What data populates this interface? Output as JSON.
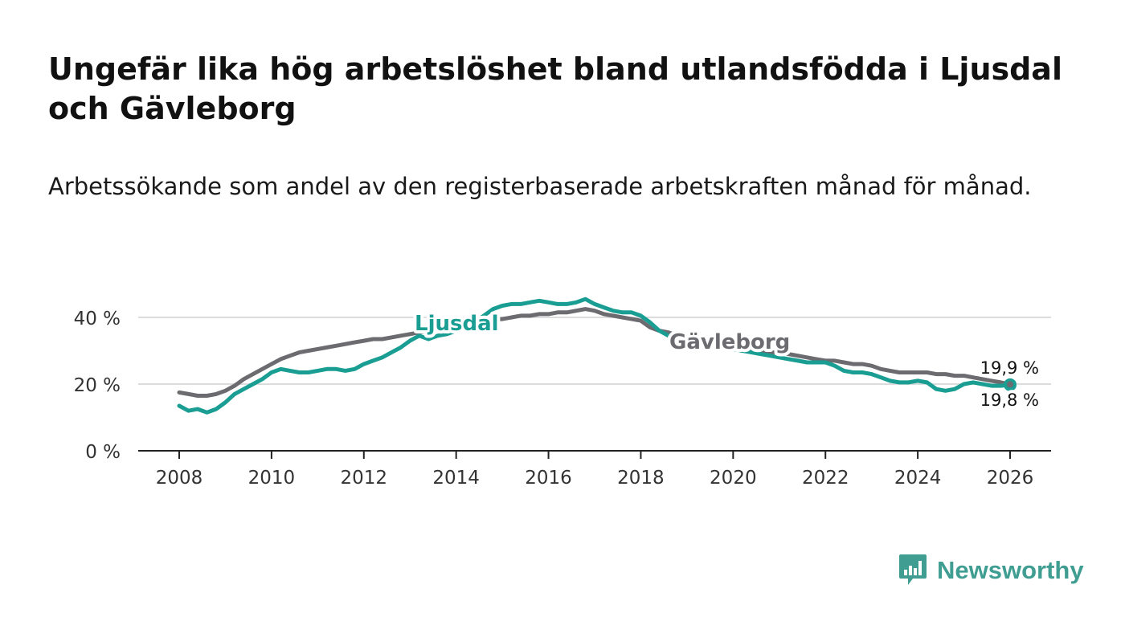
{
  "title": "Ungefär lika hög arbetslöshet bland utlandsfödda i Ljusdal och Gävleborg",
  "subtitle": "Arbetssökande som andel av den registerbaserade arbetskraften månad för månad.",
  "brand": {
    "name": "Newsworthy",
    "logo_icon": "bar-chart-speech-bubble-icon",
    "color": "#3f9e91"
  },
  "chart_data": {
    "type": "line",
    "title": "Ungefär lika hög arbetslöshet bland utlandsfödda i Ljusdal och Gävleborg",
    "xlabel": "",
    "ylabel": "",
    "x_range": [
      2007.0,
      2027.0
    ],
    "ylim": [
      0,
      40
    ],
    "x_ticks": [
      2008,
      2010,
      2012,
      2014,
      2016,
      2018,
      2020,
      2022,
      2024,
      2026
    ],
    "y_ticks": [
      {
        "value": 0,
        "label": "0 %"
      },
      {
        "value": 20,
        "label": "20 %"
      },
      {
        "value": 40,
        "label": "40 %"
      }
    ],
    "grid": true,
    "series": [
      {
        "name": "Ljusdal",
        "color": "#1a9e93",
        "label_text": "Ljusdal",
        "end_label": "19,8 %",
        "points": [
          [
            2008.0,
            13.5
          ],
          [
            2008.2,
            12.0
          ],
          [
            2008.4,
            12.5
          ],
          [
            2008.6,
            11.5
          ],
          [
            2008.8,
            12.5
          ],
          [
            2009.0,
            14.5
          ],
          [
            2009.2,
            17.0
          ],
          [
            2009.4,
            18.5
          ],
          [
            2009.6,
            20.0
          ],
          [
            2009.8,
            21.5
          ],
          [
            2010.0,
            23.5
          ],
          [
            2010.2,
            24.5
          ],
          [
            2010.4,
            24.0
          ],
          [
            2010.6,
            23.5
          ],
          [
            2010.8,
            23.5
          ],
          [
            2011.0,
            24.0
          ],
          [
            2011.2,
            24.5
          ],
          [
            2011.4,
            24.5
          ],
          [
            2011.6,
            24.0
          ],
          [
            2011.8,
            24.5
          ],
          [
            2012.0,
            26.0
          ],
          [
            2012.2,
            27.0
          ],
          [
            2012.4,
            28.0
          ],
          [
            2012.6,
            29.5
          ],
          [
            2012.8,
            31.0
          ],
          [
            2013.0,
            33.0
          ],
          [
            2013.2,
            34.5
          ],
          [
            2013.4,
            33.5
          ],
          [
            2013.6,
            34.5
          ],
          [
            2013.8,
            35.0
          ],
          [
            2014.0,
            36.0
          ],
          [
            2014.2,
            37.5
          ],
          [
            2014.4,
            38.5
          ],
          [
            2014.6,
            40.5
          ],
          [
            2014.8,
            42.5
          ],
          [
            2015.0,
            43.5
          ],
          [
            2015.2,
            44.0
          ],
          [
            2015.4,
            44.0
          ],
          [
            2015.6,
            44.5
          ],
          [
            2015.8,
            45.0
          ],
          [
            2016.0,
            44.5
          ],
          [
            2016.2,
            44.0
          ],
          [
            2016.4,
            44.0
          ],
          [
            2016.6,
            44.5
          ],
          [
            2016.8,
            45.5
          ],
          [
            2017.0,
            44.0
          ],
          [
            2017.2,
            43.0
          ],
          [
            2017.4,
            42.0
          ],
          [
            2017.6,
            41.5
          ],
          [
            2017.8,
            41.5
          ],
          [
            2018.0,
            40.5
          ],
          [
            2018.2,
            38.5
          ],
          [
            2018.4,
            36.0
          ],
          [
            2018.6,
            34.5
          ],
          [
            2018.8,
            33.5
          ],
          [
            2019.0,
            33.0
          ],
          [
            2019.2,
            32.5
          ],
          [
            2019.4,
            32.0
          ],
          [
            2019.6,
            31.5
          ],
          [
            2019.8,
            31.0
          ],
          [
            2020.0,
            30.5
          ],
          [
            2020.2,
            30.0
          ],
          [
            2020.4,
            29.5
          ],
          [
            2020.6,
            29.0
          ],
          [
            2020.8,
            28.5
          ],
          [
            2021.0,
            28.0
          ],
          [
            2021.2,
            27.5
          ],
          [
            2021.4,
            27.0
          ],
          [
            2021.6,
            26.5
          ],
          [
            2021.8,
            26.5
          ],
          [
            2022.0,
            26.5
          ],
          [
            2022.2,
            25.5
          ],
          [
            2022.4,
            24.0
          ],
          [
            2022.6,
            23.5
          ],
          [
            2022.8,
            23.5
          ],
          [
            2023.0,
            23.0
          ],
          [
            2023.2,
            22.0
          ],
          [
            2023.4,
            21.0
          ],
          [
            2023.6,
            20.5
          ],
          [
            2023.8,
            20.5
          ],
          [
            2024.0,
            21.0
          ],
          [
            2024.2,
            20.5
          ],
          [
            2024.4,
            18.5
          ],
          [
            2024.6,
            18.0
          ],
          [
            2024.8,
            18.5
          ],
          [
            2025.0,
            20.0
          ],
          [
            2025.2,
            20.5
          ],
          [
            2025.4,
            20.0
          ],
          [
            2025.6,
            19.5
          ],
          [
            2025.8,
            19.5
          ],
          [
            2026.0,
            19.8
          ]
        ]
      },
      {
        "name": "Gävleborg",
        "color": "#6b6b70",
        "label_text": "Gävleborg",
        "end_label": "19,9 %",
        "points": [
          [
            2008.0,
            17.5
          ],
          [
            2008.2,
            17.0
          ],
          [
            2008.4,
            16.5
          ],
          [
            2008.6,
            16.5
          ],
          [
            2008.8,
            17.0
          ],
          [
            2009.0,
            18.0
          ],
          [
            2009.2,
            19.5
          ],
          [
            2009.4,
            21.5
          ],
          [
            2009.6,
            23.0
          ],
          [
            2009.8,
            24.5
          ],
          [
            2010.0,
            26.0
          ],
          [
            2010.2,
            27.5
          ],
          [
            2010.4,
            28.5
          ],
          [
            2010.6,
            29.5
          ],
          [
            2010.8,
            30.0
          ],
          [
            2011.0,
            30.5
          ],
          [
            2011.2,
            31.0
          ],
          [
            2011.4,
            31.5
          ],
          [
            2011.6,
            32.0
          ],
          [
            2011.8,
            32.5
          ],
          [
            2012.0,
            33.0
          ],
          [
            2012.2,
            33.5
          ],
          [
            2012.4,
            33.5
          ],
          [
            2012.6,
            34.0
          ],
          [
            2012.8,
            34.5
          ],
          [
            2013.0,
            35.0
          ],
          [
            2013.2,
            35.5
          ],
          [
            2013.4,
            36.0
          ],
          [
            2013.6,
            36.5
          ],
          [
            2013.8,
            37.0
          ],
          [
            2014.0,
            37.5
          ],
          [
            2014.2,
            38.0
          ],
          [
            2014.4,
            38.5
          ],
          [
            2014.6,
            39.0
          ],
          [
            2014.8,
            39.5
          ],
          [
            2015.0,
            39.5
          ],
          [
            2015.2,
            40.0
          ],
          [
            2015.4,
            40.5
          ],
          [
            2015.6,
            40.5
          ],
          [
            2015.8,
            41.0
          ],
          [
            2016.0,
            41.0
          ],
          [
            2016.2,
            41.5
          ],
          [
            2016.4,
            41.5
          ],
          [
            2016.6,
            42.0
          ],
          [
            2016.8,
            42.5
          ],
          [
            2017.0,
            42.0
          ],
          [
            2017.2,
            41.0
          ],
          [
            2017.4,
            40.5
          ],
          [
            2017.6,
            40.0
          ],
          [
            2017.8,
            39.5
          ],
          [
            2018.0,
            39.0
          ],
          [
            2018.2,
            37.0
          ],
          [
            2018.4,
            36.0
          ],
          [
            2018.6,
            35.5
          ],
          [
            2018.8,
            34.5
          ],
          [
            2019.0,
            34.0
          ],
          [
            2019.2,
            33.5
          ],
          [
            2019.4,
            33.0
          ],
          [
            2019.6,
            32.5
          ],
          [
            2019.8,
            32.0
          ],
          [
            2020.0,
            31.5
          ],
          [
            2020.2,
            31.0
          ],
          [
            2020.4,
            30.5
          ],
          [
            2020.6,
            30.0
          ],
          [
            2020.8,
            29.5
          ],
          [
            2021.0,
            29.5
          ],
          [
            2021.2,
            29.0
          ],
          [
            2021.4,
            28.5
          ],
          [
            2021.6,
            28.0
          ],
          [
            2021.8,
            27.5
          ],
          [
            2022.0,
            27.0
          ],
          [
            2022.2,
            27.0
          ],
          [
            2022.4,
            26.5
          ],
          [
            2022.6,
            26.0
          ],
          [
            2022.8,
            26.0
          ],
          [
            2023.0,
            25.5
          ],
          [
            2023.2,
            24.5
          ],
          [
            2023.4,
            24.0
          ],
          [
            2023.6,
            23.5
          ],
          [
            2023.8,
            23.5
          ],
          [
            2024.0,
            23.5
          ],
          [
            2024.2,
            23.5
          ],
          [
            2024.4,
            23.0
          ],
          [
            2024.6,
            23.0
          ],
          [
            2024.8,
            22.5
          ],
          [
            2025.0,
            22.5
          ],
          [
            2025.2,
            22.0
          ],
          [
            2025.4,
            21.5
          ],
          [
            2025.6,
            21.0
          ],
          [
            2025.8,
            20.5
          ],
          [
            2026.0,
            19.9
          ]
        ]
      }
    ]
  }
}
